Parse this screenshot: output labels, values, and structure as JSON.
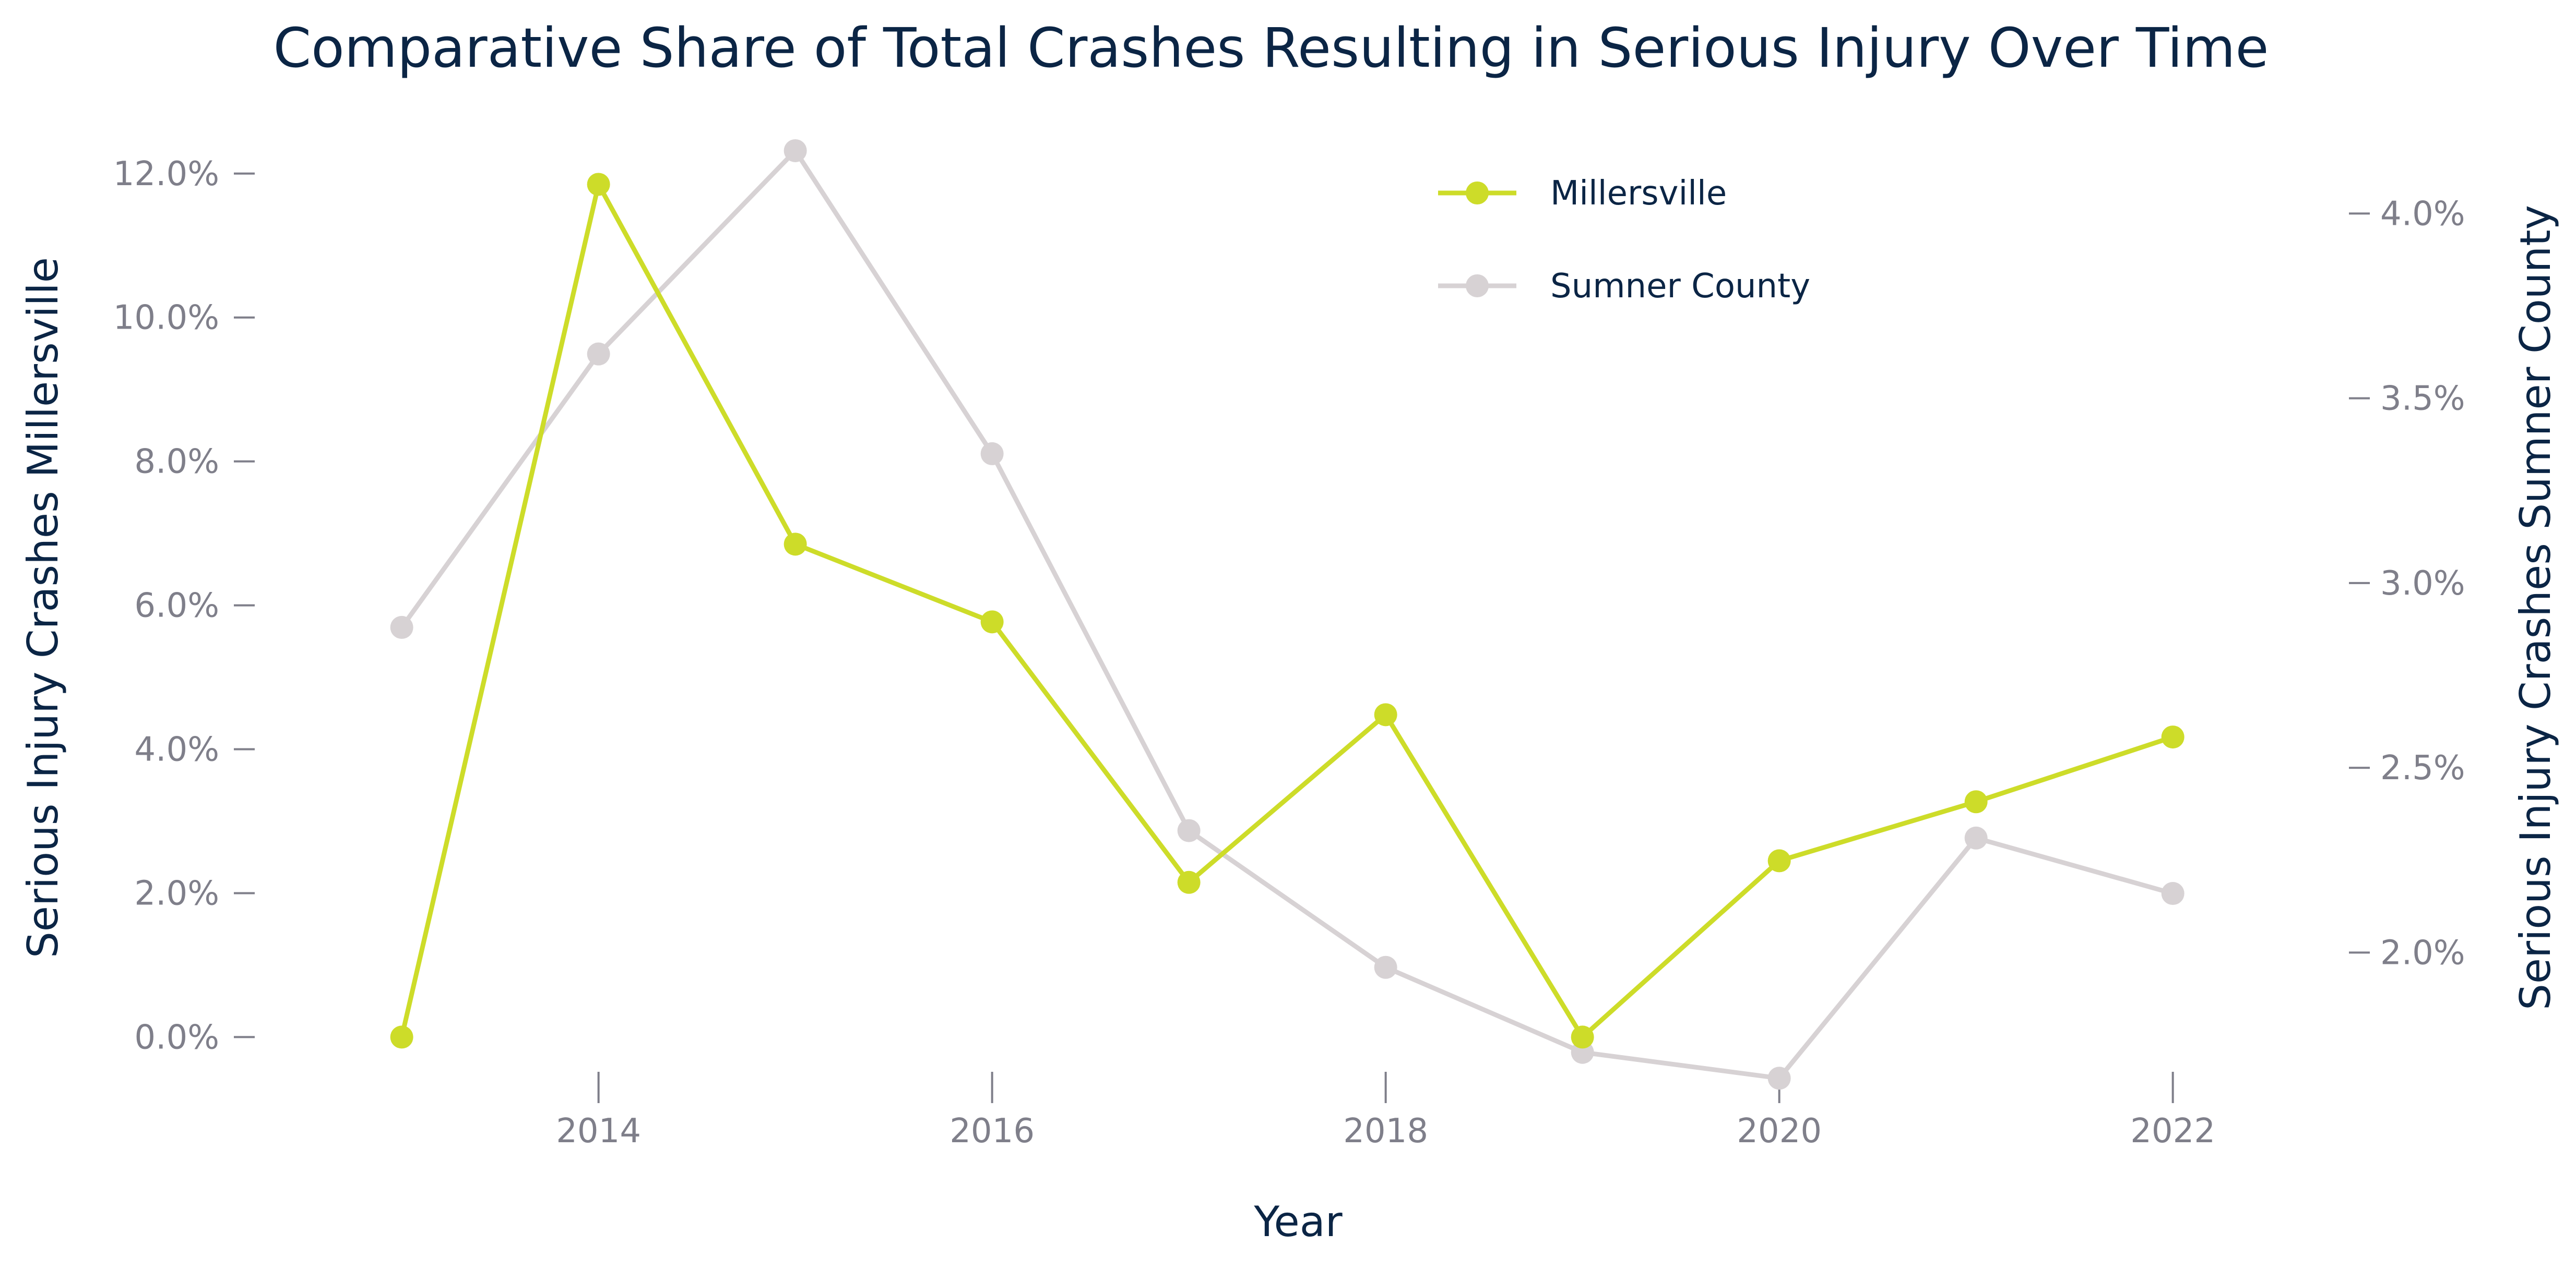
{
  "chart_data": {
    "type": "line",
    "title": "Comparative Share of Total Crashes Resulting in Serious Injury Over Time",
    "xlabel": "Year",
    "ylabel_left": "Serious Injury Crashes Millersville",
    "ylabel_right": "Serious Injury Crashes Sumner County",
    "x": [
      2013,
      2014,
      2015,
      2016,
      2017,
      2018,
      2019,
      2020,
      2021,
      2022
    ],
    "x_ticks": [
      2014,
      2016,
      2018,
      2020,
      2022
    ],
    "x_tick_labels": [
      "2014",
      "2016",
      "2018",
      "2020",
      "2022"
    ],
    "xlim": [
      2012.55,
      2022.55
    ],
    "y_left_lim": [
      -0.007,
      0.126
    ],
    "y_left_ticks": [
      0.0,
      0.02,
      0.04,
      0.06,
      0.08,
      0.1,
      0.12
    ],
    "y_left_tick_labels": [
      "0.0%",
      "2.0%",
      "4.0%",
      "6.0%",
      "8.0%",
      "10.0%",
      "12.0%"
    ],
    "y_right_lim": [
      0.01635,
      0.04225
    ],
    "y_right_ticks": [
      0.02,
      0.025,
      0.03,
      0.035,
      0.04
    ],
    "y_right_tick_labels": [
      "2.0%",
      "2.5%",
      "3.0%",
      "3.5%",
      "4.0%"
    ],
    "series": [
      {
        "name": "Millersville",
        "axis": "left",
        "color": "#cddc29",
        "values": [
          0.0,
          0.1185,
          0.0685,
          0.0577,
          0.0215,
          0.0448,
          0.0,
          0.0245,
          0.0327,
          0.0417
        ]
      },
      {
        "name": "Sumner County",
        "axis": "right",
        "color": "#d7d2d4",
        "values": [
          0.0288,
          0.0362,
          0.0417,
          0.0335,
          0.0233,
          0.0196,
          0.0173,
          0.0166,
          0.0231,
          0.0216
        ]
      }
    ],
    "legend_position": "top-right",
    "grid": false
  }
}
